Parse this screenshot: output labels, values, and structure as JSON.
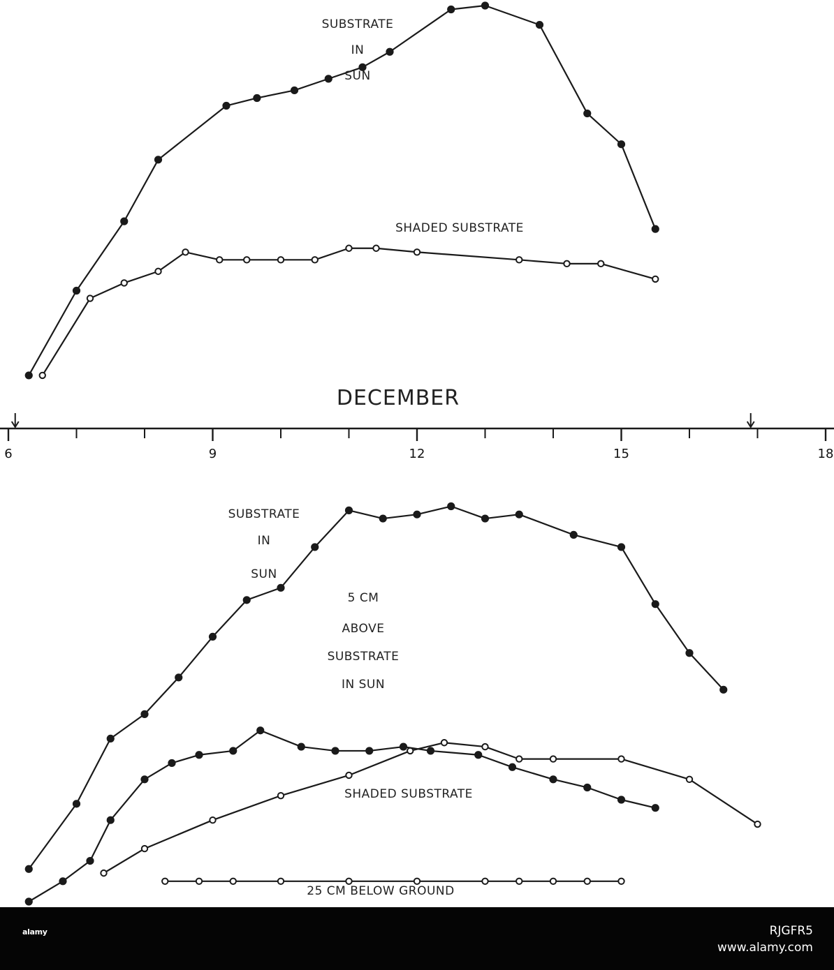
{
  "chart_data": [
    {
      "type": "line",
      "panel": "top",
      "x_unit": "hour of day",
      "xlim": [
        6,
        18
      ],
      "annotations": [
        "SUBSTRATE IN SUN",
        "SHADED SUBSTRATE"
      ],
      "series": [
        {
          "name": "SUBSTRATE IN SUN",
          "marker": "filled",
          "points": [
            [
              6.3,
              0.04
            ],
            [
              7.0,
              0.26
            ],
            [
              7.7,
              0.44
            ],
            [
              8.2,
              0.6
            ],
            [
              9.2,
              0.74
            ],
            [
              9.65,
              0.76
            ],
            [
              10.2,
              0.78
            ],
            [
              10.7,
              0.81
            ],
            [
              11.2,
              0.84
            ],
            [
              11.6,
              0.88
            ],
            [
              12.5,
              0.99
            ],
            [
              13.0,
              1.0
            ],
            [
              13.8,
              0.95
            ],
            [
              14.5,
              0.72
            ],
            [
              15.0,
              0.64
            ],
            [
              15.5,
              0.42
            ]
          ]
        },
        {
          "name": "SHADED SUBSTRATE",
          "marker": "open",
          "points": [
            [
              6.5,
              0.04
            ],
            [
              7.2,
              0.24
            ],
            [
              7.7,
              0.28
            ],
            [
              8.2,
              0.31
            ],
            [
              8.6,
              0.36
            ],
            [
              9.1,
              0.34
            ],
            [
              9.5,
              0.34
            ],
            [
              10.0,
              0.34
            ],
            [
              10.5,
              0.34
            ],
            [
              11.0,
              0.37
            ],
            [
              11.4,
              0.37
            ],
            [
              12.0,
              0.36
            ],
            [
              13.5,
              0.34
            ],
            [
              14.2,
              0.33
            ],
            [
              14.7,
              0.33
            ],
            [
              15.5,
              0.29
            ]
          ]
        }
      ]
    },
    {
      "type": "line",
      "panel": "bottom",
      "x_unit": "hour of day",
      "xlim": [
        6,
        18
      ],
      "annotations": [
        "SUBSTRATE IN SUN",
        "5 CM ABOVE SUBSTRATE IN SUN",
        "SHADED SUBSTRATE",
        "25 CM BELOW GROUND"
      ],
      "series": [
        {
          "name": "SUBSTRATE IN SUN",
          "marker": "filled",
          "points": [
            [
              6.3,
              0.08
            ],
            [
              7.0,
              0.24
            ],
            [
              7.5,
              0.4
            ],
            [
              8.0,
              0.46
            ],
            [
              8.5,
              0.55
            ],
            [
              9.0,
              0.65
            ],
            [
              9.5,
              0.74
            ],
            [
              10.0,
              0.77
            ],
            [
              10.5,
              0.87
            ],
            [
              11.0,
              0.96
            ],
            [
              11.5,
              0.94
            ],
            [
              12.0,
              0.95
            ],
            [
              12.5,
              0.97
            ],
            [
              13.0,
              0.94
            ],
            [
              13.5,
              0.95
            ],
            [
              14.3,
              0.9
            ],
            [
              15.0,
              0.87
            ],
            [
              15.5,
              0.73
            ],
            [
              16.0,
              0.61
            ],
            [
              16.5,
              0.52
            ]
          ]
        },
        {
          "name": "5 CM ABOVE SUBSTRATE IN SUN",
          "marker": "filled",
          "points": [
            [
              6.3,
              0.0
            ],
            [
              6.8,
              0.05
            ],
            [
              7.2,
              0.1
            ],
            [
              7.5,
              0.2
            ],
            [
              8.0,
              0.3
            ],
            [
              8.4,
              0.34
            ],
            [
              8.8,
              0.36
            ],
            [
              9.3,
              0.37
            ],
            [
              9.7,
              0.42
            ],
            [
              10.3,
              0.38
            ],
            [
              10.8,
              0.37
            ],
            [
              11.3,
              0.37
            ],
            [
              11.8,
              0.38
            ],
            [
              12.2,
              0.37
            ],
            [
              12.9,
              0.36
            ],
            [
              13.4,
              0.33
            ],
            [
              14.0,
              0.3
            ],
            [
              14.5,
              0.28
            ],
            [
              15.0,
              0.25
            ],
            [
              15.5,
              0.23
            ]
          ]
        },
        {
          "name": "SHADED SUBSTRATE",
          "marker": "open",
          "points": [
            [
              7.4,
              0.07
            ],
            [
              8.0,
              0.13
            ],
            [
              9.0,
              0.2
            ],
            [
              10.0,
              0.26
            ],
            [
              11.0,
              0.31
            ],
            [
              11.9,
              0.37
            ],
            [
              12.4,
              0.39
            ],
            [
              13.0,
              0.38
            ],
            [
              13.5,
              0.35
            ],
            [
              14.0,
              0.35
            ],
            [
              15.0,
              0.35
            ],
            [
              16.0,
              0.3
            ],
            [
              17.0,
              0.19
            ]
          ]
        },
        {
          "name": "25 CM BELOW GROUND",
          "marker": "open",
          "points": [
            [
              8.3,
              0.05
            ],
            [
              8.8,
              0.05
            ],
            [
              9.3,
              0.05
            ],
            [
              10.0,
              0.05
            ],
            [
              11.0,
              0.05
            ],
            [
              12.0,
              0.05
            ],
            [
              13.0,
              0.05
            ],
            [
              13.5,
              0.05
            ],
            [
              14.0,
              0.05
            ],
            [
              14.5,
              0.05
            ],
            [
              15.0,
              0.05
            ]
          ]
        }
      ]
    }
  ],
  "axis": {
    "title": "DECEMBER",
    "tick_labels": [
      "6",
      "9",
      "12",
      "15",
      "18"
    ],
    "tick_values": [
      6,
      9,
      12,
      15,
      18
    ],
    "minor_tick_values": [
      7,
      8,
      10,
      11,
      13,
      14,
      16,
      17
    ],
    "arrow_values": [
      6.1,
      16.9
    ]
  },
  "labels": {
    "top_sun": [
      "SUBSTRATE",
      "IN",
      "SUN"
    ],
    "top_shaded": "SHADED  SUBSTRATE",
    "bottom_sun": [
      "SUBSTRATE",
      "IN",
      "SUN"
    ],
    "bottom_5cm": [
      "5  CM",
      "ABOVE",
      "SUBSTRATE",
      "IN    SUN"
    ],
    "bottom_shaded": "SHADED  SUBSTRATE",
    "bottom_below": "25  CM  BELOW  GROUND"
  },
  "footer": {
    "brand": "alamy",
    "image_id": "RJGFR5",
    "site": "www.alamy.com"
  },
  "colors": {
    "ink": "#1a1a1a",
    "footer_bg": "#050505",
    "footer_text": "#ffffff"
  }
}
